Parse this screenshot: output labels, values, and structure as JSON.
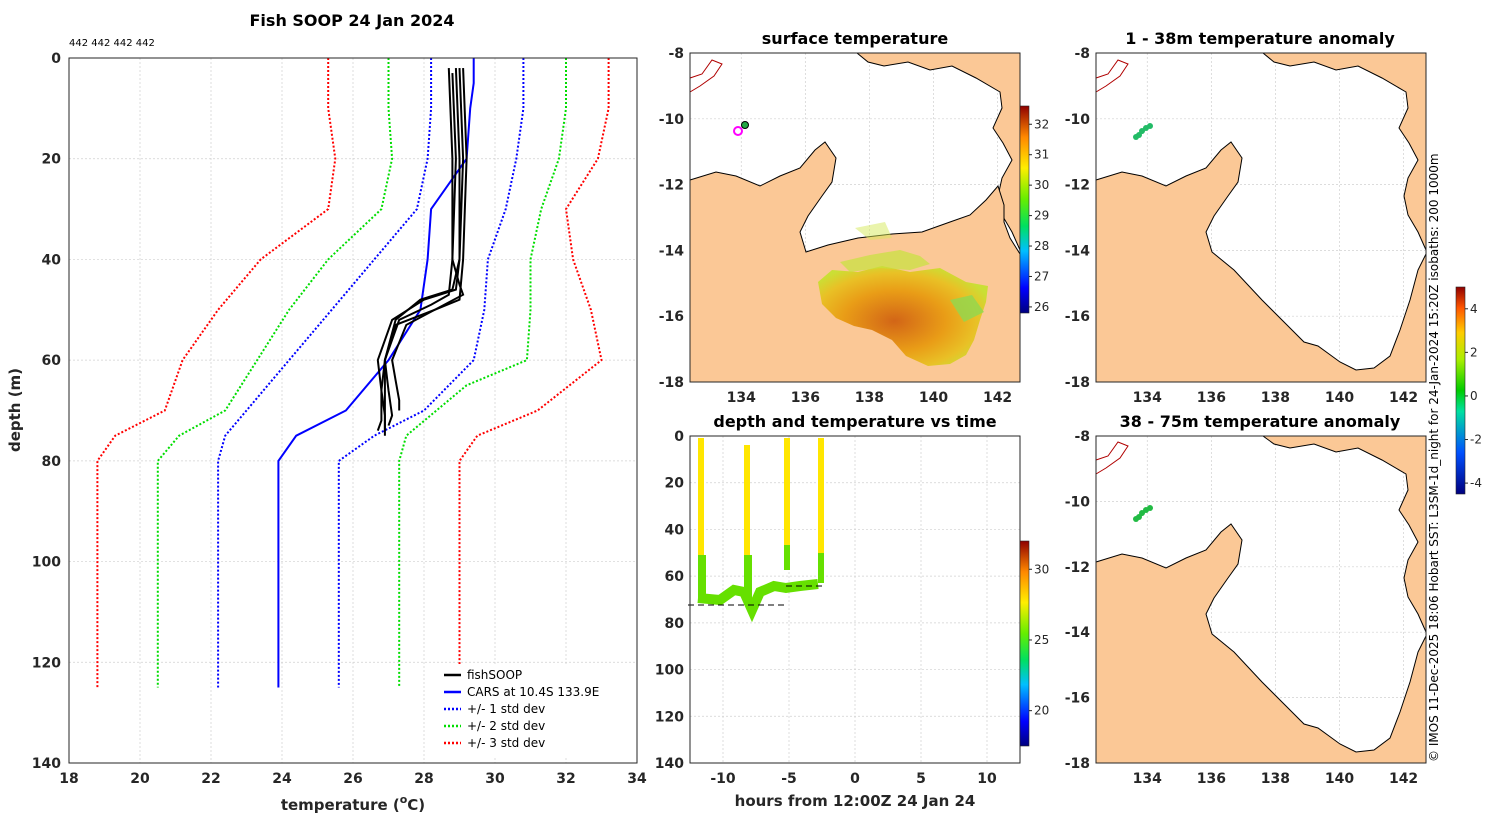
{
  "chart_data": [
    {
      "type": "line",
      "title": "Fish SOOP 24 Jan 2024",
      "subtitle": "442 442 442 442",
      "xlabel": "temperature (",
      "xlabel_sup": "o",
      "xlabel_end": "C)",
      "ylabel": "depth (m)",
      "xlim": [
        18,
        34
      ],
      "ylim": [
        0,
        140
      ],
      "xticks": [
        "18",
        "20",
        "22",
        "24",
        "26",
        "28",
        "30",
        "32",
        "34"
      ],
      "yticks": [
        "0",
        "20",
        "40",
        "60",
        "80",
        "100",
        "120",
        "140"
      ],
      "legend": [
        "fishSOOP",
        "CARS at 10.4S 133.9E",
        "+/- 1 std dev",
        "+/- 2 std dev",
        "+/- 3 std dev"
      ],
      "series": [
        {
          "name": "CARS at 10.4S 133.9E",
          "color": "#0000ff",
          "style": "solid",
          "x": [
            29.4,
            29.4,
            29.3,
            29.2,
            28.2,
            28.1,
            27.9,
            27.0,
            25.8,
            24.4,
            23.9,
            23.9
          ],
          "y": [
            0,
            5,
            10,
            20,
            30,
            40,
            50,
            60,
            70,
            75,
            80,
            125
          ]
        },
        {
          "name": "+1 std dev",
          "color": "#0000ff",
          "style": "dotted",
          "x": [
            30.8,
            30.8,
            30.6,
            30.3,
            29.8,
            29.7,
            29.4,
            28.0,
            26.6,
            25.6,
            25.6
          ],
          "y": [
            0,
            10,
            20,
            30,
            40,
            50,
            60,
            70,
            75,
            80,
            125
          ]
        },
        {
          "name": "-1 std dev",
          "color": "#0000ff",
          "style": "dotted",
          "x": [
            28.2,
            28.2,
            28.1,
            27.8,
            26.6,
            25.4,
            24.2,
            23.0,
            22.4,
            22.2,
            22.2
          ],
          "y": [
            0,
            10,
            20,
            30,
            40,
            50,
            60,
            70,
            75,
            80,
            125
          ]
        },
        {
          "name": "+2 std dev",
          "color": "#00dd00",
          "style": "dotted",
          "x": [
            32.0,
            32.0,
            31.8,
            31.3,
            31.0,
            31.0,
            30.9,
            29.2,
            27.5,
            27.3,
            27.3
          ],
          "y": [
            0,
            10,
            20,
            30,
            40,
            50,
            60,
            65,
            75,
            80,
            125
          ]
        },
        {
          "name": "-2 std dev",
          "color": "#00dd00",
          "style": "dotted",
          "x": [
            27.0,
            27.0,
            27.1,
            26.8,
            25.3,
            24.2,
            23.3,
            22.4,
            21.1,
            20.5,
            20.5
          ],
          "y": [
            0,
            10,
            20,
            30,
            40,
            50,
            60,
            70,
            75,
            80,
            125
          ]
        },
        {
          "name": "+3 std dev",
          "color": "#ff0000",
          "style": "dotted",
          "x": [
            33.2,
            33.2,
            32.9,
            32.0,
            32.2,
            32.7,
            33.0,
            31.2,
            29.5,
            29.0,
            29.0
          ],
          "y": [
            0,
            10,
            20,
            30,
            40,
            50,
            60,
            70,
            75,
            80,
            125
          ]
        },
        {
          "name": "-3 std dev",
          "color": "#ff0000",
          "style": "dotted",
          "x": [
            25.3,
            25.3,
            25.5,
            25.3,
            23.4,
            22.2,
            21.2,
            20.7,
            19.3,
            18.8,
            18.8
          ],
          "y": [
            0,
            10,
            20,
            30,
            40,
            50,
            60,
            70,
            75,
            80,
            125
          ]
        },
        {
          "name": "fishSOOP",
          "color": "#000000",
          "style": "solid",
          "width": 2,
          "profiles": [
            {
              "x": [
                28.7,
                28.8,
                28.8,
                28.7,
                28.2,
                27.3,
                26.9,
                26.9,
                26.9,
                26.9
              ],
              "y": [
                2,
                20,
                40,
                47,
                49,
                52,
                60,
                66,
                72,
                75
              ]
            },
            {
              "x": [
                28.9,
                29.0,
                29.0,
                28.9,
                28.0,
                27.1,
                26.7,
                26.8,
                26.8,
                26.7
              ],
              "y": [
                2,
                20,
                40,
                46,
                48,
                52,
                60,
                66,
                72,
                74
              ]
            },
            {
              "x": [
                29.1,
                29.2,
                29.1,
                29.0,
                28.3,
                27.2,
                26.9,
                27.0,
                27.1,
                27.0
              ],
              "y": [
                2,
                20,
                40,
                48,
                50,
                53,
                60,
                66,
                71,
                73
              ]
            },
            {
              "x": [
                28.8,
                28.9,
                28.8,
                29.0,
                29.1,
                27.5,
                27.1,
                27.2,
                27.3,
                27.3
              ],
              "y": [
                3,
                20,
                40,
                45,
                47,
                53,
                60,
                64,
                68,
                70
              ]
            },
            {
              "x": [
                29.0,
                29.1,
                29.0,
                28.8,
                27.9,
                27.2,
                26.9,
                26.8,
                26.9,
                26.9
              ],
              "y": [
                2,
                20,
                40,
                46,
                48,
                52,
                60,
                66,
                71,
                74
              ]
            }
          ]
        }
      ]
    },
    {
      "type": "heatmap",
      "title": "surface temperature",
      "xlim": [
        132.4,
        142.7
      ],
      "ylim": [
        -18,
        -8
      ],
      "xticks": [
        "134",
        "136",
        "138",
        "140",
        "142"
      ],
      "yticks": [
        "-8",
        "-10",
        "-12",
        "-14",
        "-16",
        "-18"
      ],
      "colorbar_ticks": [
        "32",
        "31",
        "30",
        "29",
        "28",
        "27",
        "26"
      ],
      "colorbar_range": [
        25.8,
        32.6
      ]
    },
    {
      "type": "heatmap",
      "title": "1 - 38m temperature anomaly",
      "xticks": [
        "134",
        "136",
        "138",
        "140",
        "142"
      ],
      "yticks": [
        "-8",
        "-10",
        "-12",
        "-14",
        "-16",
        "-18"
      ]
    },
    {
      "type": "scatter",
      "title": "depth and temperature vs time",
      "xlabel": "hours from 12:00Z 24 Jan 24",
      "xlim": [
        -12.5,
        12.5
      ],
      "ylim": [
        0,
        140
      ],
      "xticks": [
        "-10",
        "-5",
        "0",
        "5",
        "10"
      ],
      "yticks": [
        "0",
        "20",
        "40",
        "60",
        "80",
        "100",
        "120",
        "140"
      ],
      "colorbar_ticks": [
        "30",
        "25",
        "20"
      ],
      "colorbar_range": [
        17.5,
        32
      ]
    },
    {
      "type": "heatmap",
      "title": "38 - 75m temperature anomaly",
      "xticks": [
        "134",
        "136",
        "138",
        "140",
        "142"
      ],
      "yticks": [
        "-8",
        "-10",
        "-12",
        "-14",
        "-16",
        "-18"
      ],
      "colorbar_ticks": [
        "4",
        "2",
        "0",
        "-2",
        "-4"
      ],
      "colorbar_range": [
        -4.5,
        5
      ]
    }
  ],
  "side_note": "© IMOS 11-Dec-2025 18:06 Hobart SST: L3SM-1d_night for 24-Jan-2024 15:20Z isobaths: 200  1000m"
}
